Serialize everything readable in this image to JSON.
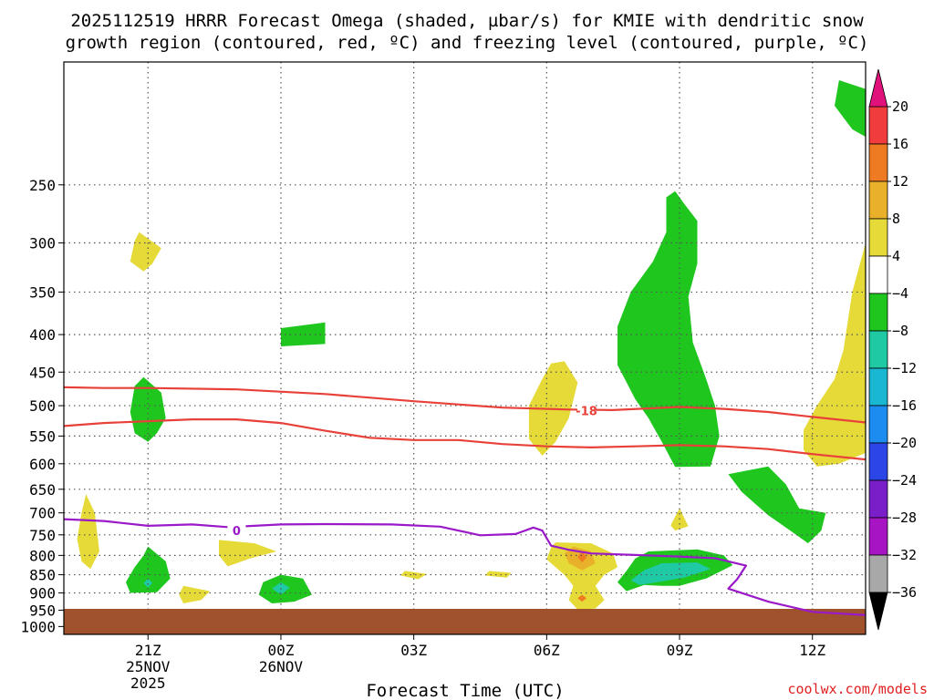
{
  "colors": {
    "sdgz": "#e8413a",
    "freezing": "#9a19c8",
    "ground": "#a0522d",
    "grid": "#555555"
  },
  "chart_data": {
    "type": "heatmap",
    "title_line1": "2025112519 HRRR Forecast Omega (shaded, µbar/s) for KMIE with dendritic snow",
    "title_line2": "growth region (contoured, red, ºC) and freezing level (contoured, purple, ºC)",
    "xlabel": "Forecast Time (UTC)",
    "ylabel": "",
    "x_range_hours": [
      -1.9,
      16.2
    ],
    "y_range_mb": [
      170,
      1025
    ],
    "x_ticks": [
      {
        "hour": 0,
        "label": "21Z",
        "date": "25NOV",
        "year": "2025"
      },
      {
        "hour": 3,
        "label": "00Z",
        "date": "26NOV",
        "year": ""
      },
      {
        "hour": 6,
        "label": "03Z",
        "date": "",
        "year": ""
      },
      {
        "hour": 9,
        "label": "06Z",
        "date": "",
        "year": ""
      },
      {
        "hour": 12,
        "label": "09Z",
        "date": "",
        "year": ""
      },
      {
        "hour": 15,
        "label": "12Z",
        "date": "",
        "year": ""
      }
    ],
    "y_ticks": [
      250,
      300,
      350,
      400,
      450,
      500,
      550,
      600,
      650,
      700,
      750,
      800,
      850,
      900,
      950,
      1000
    ],
    "grid": true,
    "colorbar": {
      "labels": [
        "20",
        "16",
        "12",
        "8",
        "4",
        "−4",
        "−8",
        "−12",
        "−16",
        "−20",
        "−24",
        "−28",
        "−32",
        "−36"
      ],
      "colors": [
        "#f03c3c",
        "#ee7a22",
        "#e9b02a",
        "#e5da38",
        "#ffffff",
        "#1ec61e",
        "#1ec9a4",
        "#19b7d1",
        "#1c8cf0",
        "#2b45e6",
        "#7a1ec9",
        "#a614c3",
        "#a8a8a8"
      ],
      "top_color": "#e0117a",
      "bottom_color": "#000000"
    },
    "contours": [
      {
        "name": "sdgz-upper",
        "color": "#e8413a",
        "label": "-18",
        "label_at": [
          9.9,
          508
        ],
        "points": [
          [
            -1.9,
            472
          ],
          [
            -1,
            473
          ],
          [
            0,
            473
          ],
          [
            2,
            475
          ],
          [
            4,
            482
          ],
          [
            6,
            493
          ],
          [
            8,
            503
          ],
          [
            9.5,
            506
          ],
          [
            10.5,
            507
          ],
          [
            12,
            502
          ],
          [
            13,
            505
          ],
          [
            14,
            510
          ],
          [
            15,
            518
          ],
          [
            16.2,
            527
          ]
        ]
      },
      {
        "name": "sdgz-lower",
        "color": "#e8413a",
        "label": "",
        "label_at": null,
        "points": [
          [
            -1.9,
            533
          ],
          [
            -1,
            528
          ],
          [
            0,
            525
          ],
          [
            1,
            522
          ],
          [
            2,
            522
          ],
          [
            3,
            528
          ],
          [
            4,
            541
          ],
          [
            5,
            553
          ],
          [
            6,
            557
          ],
          [
            7,
            557
          ],
          [
            8,
            564
          ],
          [
            9,
            568
          ],
          [
            10,
            570
          ],
          [
            11,
            568
          ],
          [
            12,
            566
          ],
          [
            13,
            568
          ],
          [
            14,
            573
          ],
          [
            15,
            582
          ],
          [
            16.2,
            592
          ]
        ]
      },
      {
        "name": "freezing-level",
        "color": "#9a19c8",
        "label": "0",
        "label_at": [
          2,
          740
        ],
        "points": [
          [
            -1.9,
            714
          ],
          [
            -1,
            718
          ],
          [
            0,
            729
          ],
          [
            1,
            726
          ],
          [
            1.8,
            732
          ],
          [
            2.2,
            730
          ],
          [
            3,
            726
          ],
          [
            4,
            725
          ],
          [
            5.5,
            726
          ],
          [
            6.6,
            731
          ],
          [
            7.5,
            751
          ],
          [
            8.3,
            748
          ],
          [
            8.7,
            733
          ],
          [
            8.9,
            740
          ],
          [
            9.1,
            776
          ],
          [
            9.5,
            786
          ],
          [
            10,
            795
          ],
          [
            11,
            799
          ],
          [
            12,
            803
          ],
          [
            12.8,
            807
          ],
          [
            13.5,
            826
          ],
          [
            13.3,
            862
          ],
          [
            13.1,
            888
          ],
          [
            14,
            925
          ],
          [
            15,
            955
          ],
          [
            16.2,
            965
          ]
        ]
      }
    ],
    "regions": [
      {
        "bin": "4 to 8",
        "color": "#e5da38",
        "points": [
          [
            -0.2,
            290
          ],
          [
            0.3,
            305
          ],
          [
            0.1,
            320
          ],
          [
            -0.1,
            328
          ],
          [
            -0.4,
            318
          ],
          [
            -0.3,
            298
          ]
        ]
      },
      {
        "bin": "-4 to -8",
        "color": "#1ec61e",
        "points": [
          [
            3,
            392
          ],
          [
            4,
            385
          ],
          [
            4,
            412
          ],
          [
            3,
            415
          ]
        ]
      },
      {
        "bin": "-4 to -8",
        "color": "#1ec61e",
        "points": [
          [
            -0.1,
            457
          ],
          [
            0.3,
            480
          ],
          [
            0.4,
            520
          ],
          [
            0.2,
            545
          ],
          [
            0,
            560
          ],
          [
            -0.3,
            545
          ],
          [
            -0.4,
            510
          ],
          [
            -0.3,
            470
          ]
        ]
      },
      {
        "bin": "4 to 8",
        "color": "#e5da38",
        "points": [
          [
            9.4,
            435
          ],
          [
            9.7,
            465
          ],
          [
            9.5,
            520
          ],
          [
            9.2,
            560
          ],
          [
            8.9,
            585
          ],
          [
            8.6,
            555
          ],
          [
            8.6,
            500
          ],
          [
            8.9,
            460
          ],
          [
            9.1,
            438
          ]
        ]
      },
      {
        "bin": "-4 to -8",
        "color": "#1ec61e",
        "points": [
          [
            12.1,
            265
          ],
          [
            12.4,
            280
          ],
          [
            12.4,
            320
          ],
          [
            12.2,
            355
          ],
          [
            12.3,
            410
          ],
          [
            12.6,
            460
          ],
          [
            12.8,
            500
          ],
          [
            12.9,
            550
          ],
          [
            12.7,
            605
          ],
          [
            11.9,
            606
          ],
          [
            11.6,
            560
          ],
          [
            11.3,
            520
          ],
          [
            11.0,
            490
          ],
          [
            10.6,
            440
          ],
          [
            10.6,
            390
          ],
          [
            10.9,
            350
          ],
          [
            11.4,
            318
          ],
          [
            11.7,
            290
          ],
          [
            11.7,
            260
          ],
          [
            11.9,
            255
          ]
        ]
      },
      {
        "bin": "4 to 8",
        "color": "#e5da38",
        "points": [
          [
            16.2,
            300
          ],
          [
            16.2,
            580
          ],
          [
            15.6,
            600
          ],
          [
            15.1,
            605
          ],
          [
            14.8,
            575
          ],
          [
            14.8,
            540
          ],
          [
            15.1,
            500
          ],
          [
            15.5,
            460
          ],
          [
            15.7,
            420
          ],
          [
            15.9,
            350
          ]
        ]
      },
      {
        "bin": "-4 to -8",
        "color": "#1ec61e",
        "points": [
          [
            15.6,
            180
          ],
          [
            16.2,
            185
          ],
          [
            16.2,
            215
          ],
          [
            15.9,
            210
          ],
          [
            15.5,
            195
          ]
        ]
      },
      {
        "bin": "-4 to -8",
        "color": "#1ec61e",
        "points": [
          [
            13.1,
            620
          ],
          [
            14.0,
            605
          ],
          [
            14.4,
            640
          ],
          [
            14.7,
            690
          ],
          [
            15.3,
            700
          ],
          [
            15.2,
            740
          ],
          [
            14.9,
            770
          ],
          [
            14.5,
            740
          ],
          [
            14.0,
            705
          ],
          [
            13.4,
            655
          ]
        ]
      },
      {
        "bin": "4 to 8",
        "color": "#e5da38",
        "points": [
          [
            -1.4,
            660
          ],
          [
            -1.2,
            700
          ],
          [
            -1.1,
            790
          ],
          [
            -1.3,
            835
          ],
          [
            -1.5,
            815
          ],
          [
            -1.6,
            760
          ],
          [
            -1.5,
            700
          ]
        ]
      },
      {
        "bin": "4 to 8",
        "color": "#e5da38",
        "points": [
          [
            1.6,
            762
          ],
          [
            2.4,
            770
          ],
          [
            2.9,
            790
          ],
          [
            2.3,
            808
          ],
          [
            1.8,
            828
          ],
          [
            1.6,
            800
          ]
        ]
      },
      {
        "bin": "4 to 8",
        "color": "#e5da38",
        "points": [
          [
            12,
            690
          ],
          [
            12.2,
            730
          ],
          [
            11.9,
            740
          ],
          [
            11.8,
            728
          ]
        ]
      },
      {
        "bin": "4 to 8",
        "color": "#e5da38",
        "points": [
          [
            5.8,
            840
          ],
          [
            6.3,
            848
          ],
          [
            6.1,
            862
          ],
          [
            5.7,
            852
          ]
        ]
      },
      {
        "bin": "4 to 8",
        "color": "#e5da38",
        "points": [
          [
            7.7,
            840
          ],
          [
            8.2,
            845
          ],
          [
            8.1,
            858
          ],
          [
            7.6,
            852
          ]
        ]
      },
      {
        "bin": "4 to 8",
        "color": "#e5da38",
        "points": [
          [
            0.8,
            880
          ],
          [
            1.4,
            895
          ],
          [
            1.2,
            920
          ],
          [
            0.8,
            930
          ],
          [
            0.7,
            905
          ]
        ]
      },
      {
        "bin": "-4 to -8",
        "color": "#1ec61e",
        "points": [
          [
            0,
            778
          ],
          [
            0.4,
            815
          ],
          [
            0.5,
            860
          ],
          [
            0.2,
            898
          ],
          [
            -0.4,
            900
          ],
          [
            -0.5,
            870
          ],
          [
            -0.3,
            830
          ],
          [
            -0.1,
            800
          ]
        ]
      },
      {
        "bin": "-8 to -12",
        "color": "#1ec9a4",
        "points": [
          [
            0,
            860
          ],
          [
            0.1,
            872
          ],
          [
            0,
            885
          ],
          [
            -0.1,
            873
          ]
        ]
      },
      {
        "bin": "-4 to -8",
        "color": "#1ec61e",
        "points": [
          [
            3,
            850
          ],
          [
            3.5,
            860
          ],
          [
            3.7,
            905
          ],
          [
            3.3,
            925
          ],
          [
            2.8,
            930
          ],
          [
            2.5,
            905
          ],
          [
            2.6,
            870
          ]
        ]
      },
      {
        "bin": "-8 to -12",
        "color": "#1ec9a4",
        "points": [
          [
            3,
            870
          ],
          [
            3.2,
            885
          ],
          [
            3.0,
            905
          ],
          [
            2.8,
            888
          ]
        ]
      },
      {
        "bin": "4 to 8",
        "color": "#e5da38",
        "points": [
          [
            9.2,
            768
          ],
          [
            10,
            770
          ],
          [
            10.5,
            795
          ],
          [
            10.6,
            830
          ],
          [
            10.3,
            850
          ],
          [
            10.1,
            880
          ],
          [
            10.3,
            920
          ],
          [
            10.1,
            945
          ],
          [
            9.7,
            948
          ],
          [
            9.5,
            920
          ],
          [
            9.6,
            880
          ],
          [
            9.4,
            850
          ],
          [
            9.0,
            810
          ],
          [
            9.1,
            780
          ]
        ]
      },
      {
        "bin": "8 to 12",
        "color": "#e9b02a",
        "points": [
          [
            9.6,
            778
          ],
          [
            10.0,
            790
          ],
          [
            10.1,
            820
          ],
          [
            9.8,
            838
          ],
          [
            9.5,
            820
          ],
          [
            9.4,
            795
          ]
        ]
      },
      {
        "bin": "12 to 16",
        "color": "#ee7a22",
        "points": [
          [
            9.8,
            790
          ],
          [
            9.9,
            805
          ],
          [
            9.8,
            818
          ],
          [
            9.7,
            804
          ]
        ]
      },
      {
        "bin": "12 to 16",
        "color": "#ee7a22",
        "points": [
          [
            9.8,
            905
          ],
          [
            9.9,
            915
          ],
          [
            9.8,
            925
          ],
          [
            9.7,
            915
          ]
        ]
      },
      {
        "bin": "-4 to -8",
        "color": "#1ec61e",
        "points": [
          [
            11.3,
            790
          ],
          [
            12.4,
            785
          ],
          [
            13.0,
            800
          ],
          [
            13.2,
            825
          ],
          [
            12.6,
            860
          ],
          [
            12.0,
            880
          ],
          [
            11.6,
            880
          ],
          [
            11.2,
            878
          ],
          [
            10.8,
            895
          ],
          [
            10.6,
            870
          ],
          [
            10.8,
            840
          ],
          [
            11.0,
            808
          ]
        ]
      },
      {
        "bin": "-8 to -12",
        "color": "#1ec9a4",
        "points": [
          [
            11.6,
            820
          ],
          [
            12.4,
            818
          ],
          [
            12.7,
            835
          ],
          [
            12.1,
            858
          ],
          [
            11.5,
            870
          ],
          [
            11.1,
            878
          ],
          [
            10.9,
            865
          ],
          [
            11.2,
            838
          ]
        ]
      }
    ]
  }
}
